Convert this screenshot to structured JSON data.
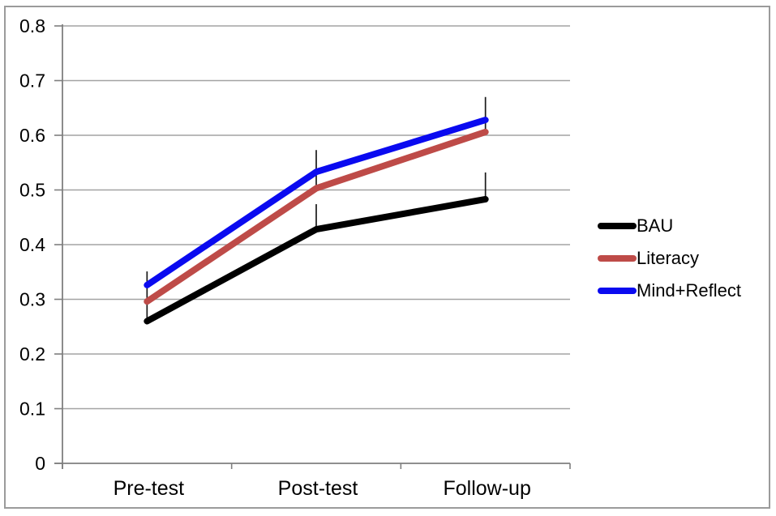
{
  "chart_data": {
    "type": "line",
    "title": "",
    "categories": [
      "Pre-test",
      "Post-test",
      "Follow-up"
    ],
    "series": [
      {
        "name": "BAU",
        "color": "#000000",
        "values": [
          0.26,
          0.428,
          0.483
        ]
      },
      {
        "name": "Literacy",
        "color": "#be4b48",
        "values": [
          0.296,
          0.503,
          0.606
        ]
      },
      {
        "name": "Mind+Reflect",
        "color": "#0a0af0",
        "values": [
          0.326,
          0.533,
          0.628
        ]
      }
    ],
    "error_bars": [
      {
        "category_index": 0,
        "from": 0.262,
        "to": 0.351
      },
      {
        "category_index": 1,
        "from": 0.503,
        "to": 0.573
      },
      {
        "category_index": 1,
        "from": 0.428,
        "to": 0.474
      },
      {
        "category_index": 2,
        "from": 0.606,
        "to": 0.67
      },
      {
        "category_index": 2,
        "from": 0.484,
        "to": 0.532
      }
    ],
    "ylim": [
      0,
      0.8
    ],
    "y_tick_step": 0.1,
    "y_tick_labels": [
      "0",
      "0.1",
      "0.2",
      "0.3",
      "0.4",
      "0.5",
      "0.6",
      "0.7",
      "0.8"
    ],
    "grid": true,
    "legend_position": "right",
    "colors": {
      "gridline": "#a3a3a3",
      "axis": "#7f7f7f",
      "error_bar": "#1a1a1a",
      "frame_border": "#9b9b9b"
    }
  }
}
